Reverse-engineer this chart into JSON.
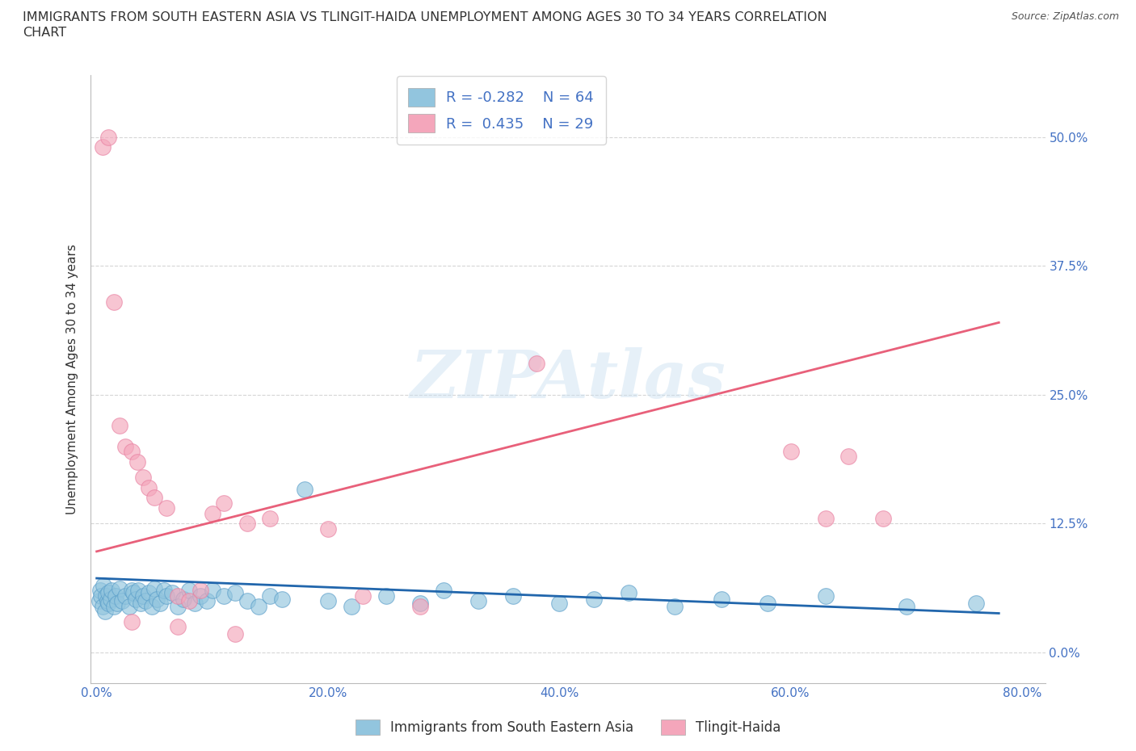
{
  "title_line1": "IMMIGRANTS FROM SOUTH EASTERN ASIA VS TLINGIT-HAIDA UNEMPLOYMENT AMONG AGES 30 TO 34 YEARS CORRELATION",
  "title_line2": "CHART",
  "source": "Source: ZipAtlas.com",
  "ylabel": "Unemployment Among Ages 30 to 34 years",
  "xlim": [
    -0.005,
    0.82
  ],
  "ylim": [
    -0.03,
    0.56
  ],
  "yticks": [
    0.0,
    0.125,
    0.25,
    0.375,
    0.5
  ],
  "ytick_labels": [
    "0.0%",
    "12.5%",
    "25.0%",
    "37.5%",
    "50.0%"
  ],
  "xticks": [
    0.0,
    0.2,
    0.4,
    0.6,
    0.8
  ],
  "xtick_labels": [
    "0.0%",
    "20.0%",
    "40.0%",
    "60.0%",
    "80.0%"
  ],
  "blue_color": "#92c5de",
  "pink_color": "#f4a6bb",
  "blue_edge_color": "#5a9ec9",
  "pink_edge_color": "#e87fa0",
  "blue_line_color": "#2166ac",
  "pink_line_color": "#e8607a",
  "legend_text_color": "#4472c4",
  "tick_color": "#4472c4",
  "watermark": "ZIPAtlas",
  "background_color": "#ffffff",
  "grid_color": "#cccccc",
  "blue_N": 64,
  "pink_N": 29,
  "blue_trend": [
    0.0,
    0.78,
    0.072,
    0.038
  ],
  "pink_trend": [
    0.0,
    0.78,
    0.098,
    0.32
  ],
  "blue_scatter_x": [
    0.002,
    0.003,
    0.004,
    0.005,
    0.006,
    0.007,
    0.008,
    0.009,
    0.01,
    0.01,
    0.012,
    0.013,
    0.015,
    0.016,
    0.018,
    0.02,
    0.022,
    0.025,
    0.028,
    0.03,
    0.032,
    0.034,
    0.036,
    0.038,
    0.04,
    0.042,
    0.045,
    0.048,
    0.05,
    0.052,
    0.055,
    0.058,
    0.06,
    0.065,
    0.07,
    0.075,
    0.08,
    0.085,
    0.09,
    0.095,
    0.1,
    0.11,
    0.12,
    0.13,
    0.14,
    0.15,
    0.16,
    0.18,
    0.2,
    0.22,
    0.25,
    0.28,
    0.3,
    0.33,
    0.36,
    0.4,
    0.43,
    0.46,
    0.5,
    0.54,
    0.58,
    0.63,
    0.7,
    0.76
  ],
  "blue_scatter_y": [
    0.05,
    0.06,
    0.055,
    0.045,
    0.065,
    0.04,
    0.055,
    0.05,
    0.048,
    0.058,
    0.052,
    0.06,
    0.045,
    0.055,
    0.048,
    0.062,
    0.05,
    0.055,
    0.045,
    0.06,
    0.058,
    0.052,
    0.06,
    0.048,
    0.055,
    0.05,
    0.058,
    0.045,
    0.062,
    0.052,
    0.048,
    0.06,
    0.055,
    0.058,
    0.045,
    0.052,
    0.06,
    0.048,
    0.055,
    0.05,
    0.06,
    0.055,
    0.058,
    0.05,
    0.045,
    0.055,
    0.052,
    0.158,
    0.05,
    0.045,
    0.055,
    0.048,
    0.06,
    0.05,
    0.055,
    0.048,
    0.052,
    0.058,
    0.045,
    0.052,
    0.048,
    0.055,
    0.045,
    0.048
  ],
  "pink_scatter_x": [
    0.005,
    0.01,
    0.015,
    0.02,
    0.025,
    0.03,
    0.035,
    0.04,
    0.045,
    0.05,
    0.06,
    0.07,
    0.08,
    0.09,
    0.1,
    0.11,
    0.13,
    0.15,
    0.2,
    0.23,
    0.28,
    0.38,
    0.6,
    0.63,
    0.65,
    0.68,
    0.03,
    0.07,
    0.12
  ],
  "pink_scatter_y": [
    0.49,
    0.5,
    0.34,
    0.22,
    0.2,
    0.195,
    0.185,
    0.17,
    0.16,
    0.15,
    0.14,
    0.055,
    0.05,
    0.06,
    0.135,
    0.145,
    0.125,
    0.13,
    0.12,
    0.055,
    0.045,
    0.28,
    0.195,
    0.13,
    0.19,
    0.13,
    0.03,
    0.025,
    0.018
  ]
}
